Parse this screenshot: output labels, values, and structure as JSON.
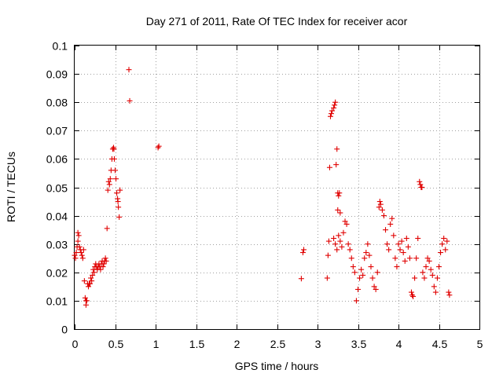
{
  "chart_data": {
    "type": "scatter",
    "title": "Day 271 of 2011, Rate Of TEC Index for receiver acor",
    "xlabel": "GPS time / hours",
    "ylabel": "ROTI / TECUs",
    "xlim": [
      0,
      5
    ],
    "ylim": [
      0,
      0.1
    ],
    "grid": true,
    "xticks": [
      "0",
      "0.5",
      "1",
      "1.5",
      "2",
      "2.5",
      "3",
      "3.5",
      "4",
      "4.5",
      "5"
    ],
    "yticks": [
      "0",
      "0.01",
      "0.02",
      "0.03",
      "0.04",
      "0.05",
      "0.06",
      "0.07",
      "0.08",
      "0.09",
      "0.1"
    ],
    "marker": "+",
    "color": "#e00000",
    "series": [
      {
        "name": "ROTI",
        "points": [
          [
            0.0,
            0.026
          ],
          [
            0.01,
            0.025
          ],
          [
            0.02,
            0.027
          ],
          [
            0.03,
            0.029
          ],
          [
            0.04,
            0.031
          ],
          [
            0.04,
            0.034
          ],
          [
            0.05,
            0.033
          ],
          [
            0.06,
            0.029
          ],
          [
            0.07,
            0.028
          ],
          [
            0.08,
            0.027
          ],
          [
            0.09,
            0.026
          ],
          [
            0.1,
            0.025
          ],
          [
            0.11,
            0.028
          ],
          [
            0.12,
            0.017
          ],
          [
            0.13,
            0.011
          ],
          [
            0.14,
            0.01
          ],
          [
            0.14,
            0.0085
          ],
          [
            0.15,
            0.01
          ],
          [
            0.16,
            0.016
          ],
          [
            0.17,
            0.015
          ],
          [
            0.18,
            0.016
          ],
          [
            0.19,
            0.016
          ],
          [
            0.2,
            0.018
          ],
          [
            0.21,
            0.017
          ],
          [
            0.22,
            0.019
          ],
          [
            0.23,
            0.021
          ],
          [
            0.24,
            0.02
          ],
          [
            0.25,
            0.022
          ],
          [
            0.26,
            0.023
          ],
          [
            0.27,
            0.022
          ],
          [
            0.28,
            0.021
          ],
          [
            0.29,
            0.022
          ],
          [
            0.3,
            0.023
          ],
          [
            0.31,
            0.022
          ],
          [
            0.32,
            0.021
          ],
          [
            0.33,
            0.023
          ],
          [
            0.34,
            0.024
          ],
          [
            0.35,
            0.022
          ],
          [
            0.36,
            0.023
          ],
          [
            0.37,
            0.024
          ],
          [
            0.38,
            0.025
          ],
          [
            0.39,
            0.024
          ],
          [
            0.4,
            0.0355
          ],
          [
            0.41,
            0.049
          ],
          [
            0.42,
            0.052
          ],
          [
            0.43,
            0.051
          ],
          [
            0.44,
            0.053
          ],
          [
            0.45,
            0.056
          ],
          [
            0.46,
            0.06
          ],
          [
            0.47,
            0.0635
          ],
          [
            0.48,
            0.064
          ],
          [
            0.485,
            0.0635
          ],
          [
            0.49,
            0.06
          ],
          [
            0.5,
            0.056
          ],
          [
            0.51,
            0.053
          ],
          [
            0.52,
            0.048
          ],
          [
            0.53,
            0.046
          ],
          [
            0.535,
            0.045
          ],
          [
            0.54,
            0.043
          ],
          [
            0.55,
            0.0395
          ],
          [
            0.56,
            0.049
          ],
          [
            0.67,
            0.0915
          ],
          [
            0.68,
            0.0805
          ],
          [
            1.03,
            0.064
          ],
          [
            1.04,
            0.0645
          ],
          [
            2.8,
            0.0178
          ],
          [
            2.82,
            0.027
          ],
          [
            2.83,
            0.028
          ],
          [
            3.12,
            0.018
          ],
          [
            3.13,
            0.026
          ],
          [
            3.14,
            0.031
          ],
          [
            3.15,
            0.057
          ],
          [
            3.16,
            0.075
          ],
          [
            3.17,
            0.076
          ],
          [
            3.18,
            0.077
          ],
          [
            3.2,
            0.078
          ],
          [
            3.21,
            0.079
          ],
          [
            3.22,
            0.08
          ],
          [
            3.23,
            0.058
          ],
          [
            3.24,
            0.0635
          ],
          [
            3.25,
            0.048
          ],
          [
            3.25,
            0.042
          ],
          [
            3.26,
            0.047
          ],
          [
            3.27,
            0.048
          ],
          [
            3.28,
            0.041
          ],
          [
            3.2,
            0.032
          ],
          [
            3.22,
            0.03
          ],
          [
            3.24,
            0.028
          ],
          [
            3.26,
            0.033
          ],
          [
            3.28,
            0.031
          ],
          [
            3.3,
            0.029
          ],
          [
            3.32,
            0.034
          ],
          [
            3.34,
            0.038
          ],
          [
            3.36,
            0.037
          ],
          [
            3.38,
            0.03
          ],
          [
            3.4,
            0.028
          ],
          [
            3.42,
            0.025
          ],
          [
            3.44,
            0.022
          ],
          [
            3.46,
            0.02
          ],
          [
            3.48,
            0.01
          ],
          [
            3.5,
            0.014
          ],
          [
            3.52,
            0.018
          ],
          [
            3.54,
            0.021
          ],
          [
            3.56,
            0.019
          ],
          [
            3.58,
            0.025
          ],
          [
            3.6,
            0.027
          ],
          [
            3.62,
            0.03
          ],
          [
            3.64,
            0.026
          ],
          [
            3.66,
            0.022
          ],
          [
            3.68,
            0.018
          ],
          [
            3.7,
            0.015
          ],
          [
            3.72,
            0.014
          ],
          [
            3.74,
            0.02
          ],
          [
            3.76,
            0.043
          ],
          [
            3.77,
            0.045
          ],
          [
            3.78,
            0.044
          ],
          [
            3.8,
            0.042
          ],
          [
            3.82,
            0.04
          ],
          [
            3.84,
            0.035
          ],
          [
            3.86,
            0.03
          ],
          [
            3.88,
            0.028
          ],
          [
            3.9,
            0.037
          ],
          [
            3.92,
            0.039
          ],
          [
            3.94,
            0.033
          ],
          [
            3.96,
            0.025
          ],
          [
            3.98,
            0.022
          ],
          [
            4.0,
            0.03
          ],
          [
            4.02,
            0.028
          ],
          [
            4.04,
            0.031
          ],
          [
            4.06,
            0.027
          ],
          [
            4.08,
            0.024
          ],
          [
            4.1,
            0.032
          ],
          [
            4.12,
            0.029
          ],
          [
            4.14,
            0.025
          ],
          [
            4.16,
            0.013
          ],
          [
            4.17,
            0.012
          ],
          [
            4.18,
            0.0115
          ],
          [
            4.2,
            0.018
          ],
          [
            4.22,
            0.025
          ],
          [
            4.24,
            0.032
          ],
          [
            4.26,
            0.052
          ],
          [
            4.27,
            0.051
          ],
          [
            4.28,
            0.05
          ],
          [
            4.29,
            0.05
          ],
          [
            4.3,
            0.02
          ],
          [
            4.32,
            0.018
          ],
          [
            4.34,
            0.022
          ],
          [
            4.36,
            0.025
          ],
          [
            4.38,
            0.024
          ],
          [
            4.4,
            0.021
          ],
          [
            4.42,
            0.019
          ],
          [
            4.44,
            0.015
          ],
          [
            4.46,
            0.013
          ],
          [
            4.48,
            0.018
          ],
          [
            4.5,
            0.022
          ],
          [
            4.52,
            0.027
          ],
          [
            4.54,
            0.03
          ],
          [
            4.56,
            0.032
          ],
          [
            4.58,
            0.028
          ],
          [
            4.6,
            0.031
          ],
          [
            4.62,
            0.013
          ],
          [
            4.63,
            0.012
          ]
        ]
      }
    ]
  }
}
